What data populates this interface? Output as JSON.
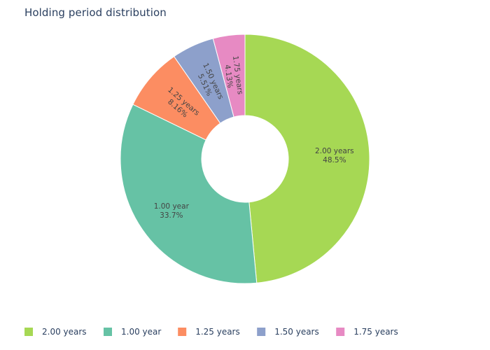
{
  "chart_data": {
    "type": "pie",
    "title": "Holding period distribution",
    "hole": true,
    "slices": [
      {
        "label": "2.00 years",
        "value": 48.5,
        "value_text": "48.5%",
        "color": "#a6d854"
      },
      {
        "label": "1.00 year",
        "value": 33.7,
        "value_text": "33.7%",
        "color": "#66c2a5"
      },
      {
        "label": "1.25 years",
        "value": 8.16,
        "value_text": "8.16%",
        "color": "#fc8d62"
      },
      {
        "label": "1.50 years",
        "value": 5.51,
        "value_text": "5.51%",
        "color": "#8da0cb"
      },
      {
        "label": "1.75 years",
        "value": 4.13,
        "value_text": "4.13%",
        "color": "#e78ac3"
      }
    ],
    "legend": {
      "position": "bottom",
      "items": [
        "2.00 years",
        "1.00 year",
        "1.25 years",
        "1.50 years",
        "1.75 years"
      ]
    },
    "text_color": "#444444"
  }
}
